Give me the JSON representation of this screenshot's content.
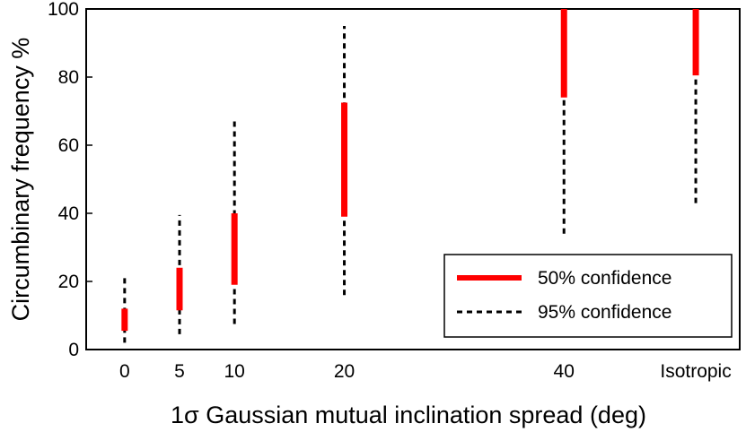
{
  "chart_data": {
    "type": "errorbar",
    "xlabel": "1σ Gaussian mutual inclination spread (deg)",
    "ylabel": "Circumbinary frequency %",
    "ylim": [
      0,
      100
    ],
    "yticks": [
      0,
      20,
      40,
      60,
      80,
      100
    ],
    "grid": false,
    "legend_position": "bottom-right",
    "categories": [
      "0",
      "5",
      "10",
      "20",
      "40",
      "Isotropic"
    ],
    "x": [
      0,
      5,
      10,
      20,
      40,
      52
    ],
    "series": [
      {
        "name": "50% confidence",
        "color": "#ff0000",
        "style": "solid",
        "ranges": [
          [
            5.5,
            12
          ],
          [
            11.5,
            24
          ],
          [
            19,
            40
          ],
          [
            39,
            72.5
          ],
          [
            74,
            100
          ],
          [
            80.5,
            100
          ]
        ]
      },
      {
        "name": "95% confidence",
        "color": "#000000",
        "style": "dashed",
        "ranges": [
          [
            2,
            21
          ],
          [
            4.5,
            39.5
          ],
          [
            7.5,
            67.5
          ],
          [
            16,
            95
          ],
          [
            34,
            100
          ],
          [
            43,
            100
          ]
        ]
      }
    ]
  }
}
